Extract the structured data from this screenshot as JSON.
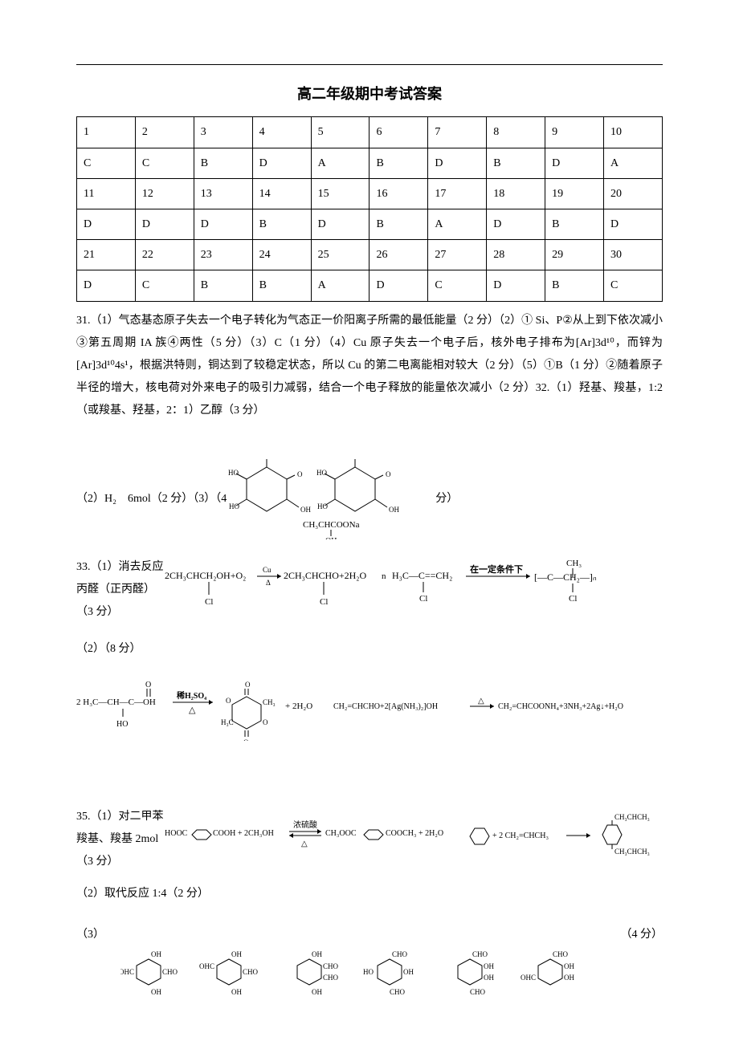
{
  "title": "高二年级期中考试答案",
  "answer_table": {
    "rows": [
      [
        "1",
        "2",
        "3",
        "4",
        "5",
        "6",
        "7",
        "8",
        "9",
        "10"
      ],
      [
        "C",
        "C",
        "B",
        "D",
        "A",
        "B",
        "D",
        "B",
        "D",
        "A"
      ],
      [
        "11",
        "12",
        "13",
        "14",
        "15",
        "16",
        "17",
        "18",
        "19",
        "20"
      ],
      [
        "D",
        "D",
        "D",
        "B",
        "D",
        "B",
        "A",
        "D",
        "B",
        "D"
      ],
      [
        "21",
        "22",
        "23",
        "24",
        "25",
        "26",
        "27",
        "28",
        "29",
        "30"
      ],
      [
        "D",
        "C",
        "B",
        "B",
        "A",
        "D",
        "C",
        "D",
        "B",
        "C"
      ]
    ]
  },
  "q31_text": "31.（1）气态基态原子失去一个电子转化为气态正一价阳离子所需的最低能量（2 分）（2）① Si、P②从上到下依次减小③第五周期 IA 族④两性（5 分）（3）C（1 分）（4）Cu 原子失去一个电子后，核外电子排布为[Ar]3d¹⁰，而锌为[Ar]3d¹⁰4s¹，根据洪特则，铜达到了较稳定状态，所以 Cu 的第二电离能相对较大（2 分）（5）①B（1 分）②随着原子半径的增大，核电荷对外来电子的吸引力减弱，结合一个电子释放的能量依次减小（2 分）32.（1）羟基、羧基，1:2（或羧基、羟基，2：1）乙醇（3 分）",
  "q32_2_left": "（2）H₂　6mol（2 分）（3）（4",
  "q32_2_right": "分）",
  "q33_left": "33.（1）消去反应 丙醛（正丙醛）（3 分）",
  "q33_2": "（2）（8 分）",
  "q35_left": "35.（1）对二甲苯羧基、羧基 2mol（3 分）",
  "q35_2": "（2）取代反应 1:4（2 分）",
  "q35_3_left": "（3）",
  "q35_3_right": "（4 分）",
  "chem_labels": {
    "ho": "HO",
    "oh": "OH",
    "o": "O",
    "ch3chcoona": "CH₃CHCOONa",
    "reaction33": "2CH₃CHCH₂OH+O₂",
    "cu_delta": "Cu/Δ",
    "reaction33_mid": "2CH₃CHCHO+2H₂O",
    "cl": "Cl",
    "n": "n",
    "h3c_c_ch2": "H₃C—C==CH₂",
    "condition": "在一定条件下",
    "ch3": "CH₃",
    "ch2": "CH₂",
    "lactic": "2 H₃C—CH—C—OH",
    "h2so4": "稀H₂SO₄",
    "delta": "Δ",
    "plus_2h2o": "+ 2H₂O",
    "silver": "CH₂=CHCHO+2[Ag(NH₃)₂]OH",
    "silver_prod": "CH₂=CHCOONH₄+3NH₃+2Ag↓+H₂O",
    "hooc": "HOOC",
    "cooh": "COOH",
    "plus_2ch3oh": "+ 2CH₃OH",
    "conc_acid": "浓硫酸",
    "ch3ooc": "CH₃OOC",
    "cooch3": "COOCH₃",
    "plus_2h2o_b": "+ 2H₂O",
    "plus_2ch2chch3": "+ 2 CH₂=CHCH₃",
    "ch3chch3": "CH₃CHCH₃",
    "ohc": "OHC",
    "cho": "CHO"
  }
}
